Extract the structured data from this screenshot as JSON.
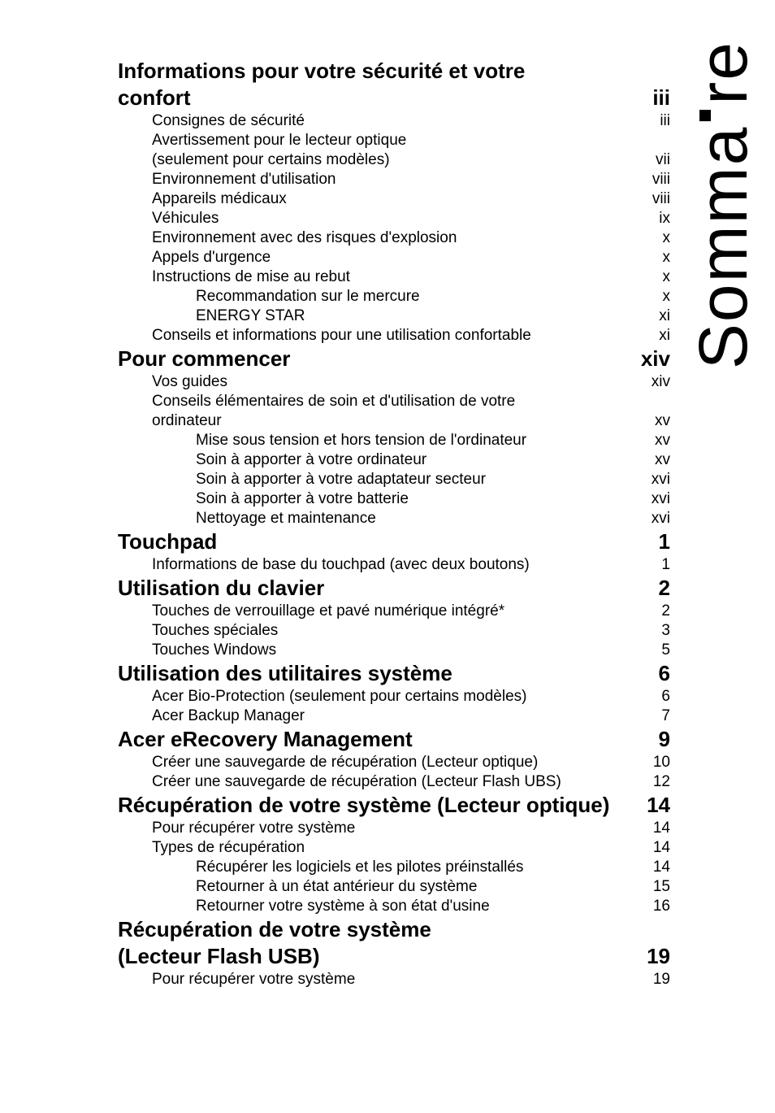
{
  "vertical_title_pre": "Somma",
  "vertical_title_post": "re",
  "toc": [
    {
      "level": 1,
      "text": "Informations pour votre sécurité et votre",
      "page": "",
      "cont": true
    },
    {
      "level": 1,
      "text": "confort",
      "page": "iii"
    },
    {
      "level": 2,
      "text": "Consignes de sécurité",
      "page": "iii"
    },
    {
      "level": 2,
      "text": "Avertissement pour le lecteur optique",
      "page": "",
      "cont": true
    },
    {
      "level": 2,
      "text": "(seulement pour certains modèles)",
      "page": "vii"
    },
    {
      "level": 2,
      "text": "Environnement d'utilisation",
      "page": "viii"
    },
    {
      "level": 2,
      "text": "Appareils médicaux",
      "page": "viii"
    },
    {
      "level": 2,
      "text": "Véhicules",
      "page": "ix"
    },
    {
      "level": 2,
      "text": "Environnement avec des risques d'explosion",
      "page": "x"
    },
    {
      "level": 2,
      "text": "Appels d'urgence",
      "page": "x"
    },
    {
      "level": 2,
      "text": "Instructions de mise au rebut",
      "page": "x"
    },
    {
      "level": 3,
      "text": "Recommandation sur le mercure",
      "page": "x"
    },
    {
      "level": 3,
      "text": "ENERGY STAR",
      "page": "xi"
    },
    {
      "level": 2,
      "text": "Conseils et informations pour une utilisation confortable",
      "page": "xi"
    },
    {
      "level": 1,
      "text": "Pour commencer",
      "page": "xiv"
    },
    {
      "level": 2,
      "text": "Vos guides",
      "page": "xiv"
    },
    {
      "level": 2,
      "text": "Conseils élémentaires de soin et d'utilisation de votre",
      "page": "",
      "cont": true
    },
    {
      "level": 2,
      "text": "ordinateur",
      "page": "xv"
    },
    {
      "level": 3,
      "text": "Mise sous tension et hors tension de l'ordinateur",
      "page": "xv"
    },
    {
      "level": 3,
      "text": "Soin à apporter à votre ordinateur",
      "page": "xv"
    },
    {
      "level": 3,
      "text": "Soin à apporter à votre adaptateur secteur",
      "page": "xvi"
    },
    {
      "level": 3,
      "text": "Soin à apporter à votre batterie",
      "page": "xvi"
    },
    {
      "level": 3,
      "text": "Nettoyage et maintenance",
      "page": "xvi"
    },
    {
      "level": 1,
      "text": "Touchpad",
      "page": "1"
    },
    {
      "level": 2,
      "text": "Informations de base du touchpad (avec deux boutons)",
      "page": "1"
    },
    {
      "level": 1,
      "text": "Utilisation du clavier",
      "page": "2"
    },
    {
      "level": 2,
      "text": "Touches de verrouillage et pavé numérique intégré*",
      "page": "2"
    },
    {
      "level": 2,
      "text": "Touches spéciales",
      "page": "3"
    },
    {
      "level": 2,
      "text": "Touches Windows",
      "page": "5"
    },
    {
      "level": 1,
      "text": "Utilisation des utilitaires système",
      "page": "6"
    },
    {
      "level": 2,
      "text": "Acer Bio-Protection (seulement pour certains modèles)",
      "page": "6"
    },
    {
      "level": 2,
      "text": "Acer Backup Manager",
      "page": "7"
    },
    {
      "level": 1,
      "text": "Acer eRecovery Management",
      "page": "9"
    },
    {
      "level": 2,
      "text": "Créer une sauvegarde de récupération (Lecteur optique)",
      "page": "10"
    },
    {
      "level": 2,
      "text": "Créer une sauvegarde de récupération (Lecteur Flash UBS)",
      "page": "12"
    },
    {
      "level": 1,
      "text": "Récupération de votre système (Lecteur optique)",
      "page": "14"
    },
    {
      "level": 2,
      "text": "Pour récupérer votre système",
      "page": "14"
    },
    {
      "level": 2,
      "text": "Types de récupération",
      "page": "14"
    },
    {
      "level": 3,
      "text": "Récupérer les logiciels et les pilotes préinstallés",
      "page": "14"
    },
    {
      "level": 3,
      "text": "Retourner à un état antérieur du système",
      "page": "15"
    },
    {
      "level": 3,
      "text": "Retourner votre système à son état d'usine",
      "page": "16"
    },
    {
      "level": 1,
      "text": "Récupération de votre système",
      "page": "",
      "cont": true
    },
    {
      "level": 1,
      "text": "(Lecteur Flash USB)",
      "page": "19"
    },
    {
      "level": 2,
      "text": "Pour récupérer votre système",
      "page": "19"
    }
  ]
}
